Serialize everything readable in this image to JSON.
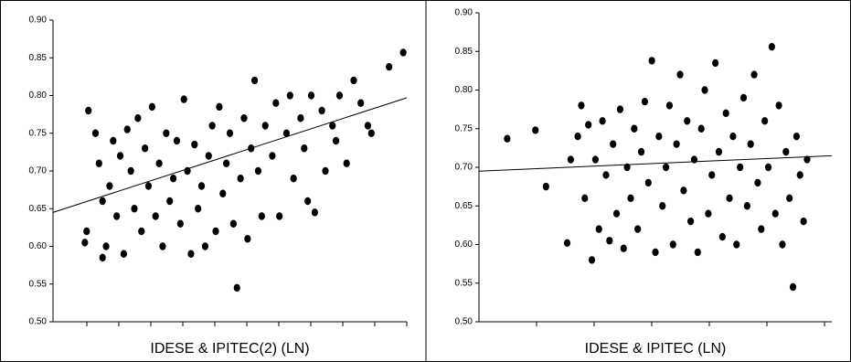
{
  "chart_data": [
    {
      "type": "scatter",
      "x_label": "IDESE & IPITEC(2) (LN)",
      "color": "#000000",
      "xlim": [
        0,
        10
      ],
      "ylim": [
        0.5,
        0.9
      ],
      "yticks": [
        {
          "value": 0.5,
          "label": "0.50"
        },
        0.55,
        {
          "value": 0.6,
          "label": "0.60"
        },
        0.65,
        {
          "value": 0.7,
          "label": "0.70"
        },
        0.75,
        {
          "value": 0.8,
          "label": "0.80"
        },
        0.85,
        {
          "value": 0.9,
          "label": "0.90"
        }
      ],
      "x": [
        0.9,
        0.95,
        1.0,
        1.2,
        1.3,
        1.4,
        1.4,
        1.5,
        1.6,
        1.7,
        1.8,
        1.9,
        2.0,
        2.1,
        2.2,
        2.3,
        2.4,
        2.5,
        2.6,
        2.7,
        2.8,
        2.9,
        3.0,
        3.1,
        3.2,
        3.3,
        3.4,
        3.5,
        3.6,
        3.7,
        3.8,
        3.9,
        4.0,
        4.1,
        4.2,
        4.3,
        4.4,
        4.5,
        4.6,
        4.7,
        4.8,
        4.9,
        5.0,
        5.1,
        5.2,
        5.3,
        5.4,
        5.5,
        5.6,
        5.7,
        5.8,
        5.9,
        6.0,
        6.2,
        6.3,
        6.4,
        6.6,
        6.7,
        6.8,
        7.0,
        7.1,
        7.2,
        7.3,
        7.4,
        7.6,
        7.7,
        7.9,
        8.0,
        8.1,
        8.3,
        8.5,
        8.7,
        8.9,
        9.0,
        9.5,
        9.9
      ],
      "y": [
        0.605,
        0.62,
        0.78,
        0.75,
        0.71,
        0.66,
        0.585,
        0.6,
        0.68,
        0.74,
        0.64,
        0.72,
        0.59,
        0.755,
        0.7,
        0.65,
        0.77,
        0.62,
        0.73,
        0.68,
        0.785,
        0.64,
        0.71,
        0.6,
        0.75,
        0.66,
        0.69,
        0.74,
        0.63,
        0.795,
        0.7,
        0.59,
        0.735,
        0.65,
        0.68,
        0.6,
        0.72,
        0.76,
        0.62,
        0.785,
        0.67,
        0.71,
        0.75,
        0.63,
        0.545,
        0.69,
        0.77,
        0.61,
        0.73,
        0.82,
        0.7,
        0.64,
        0.76,
        0.72,
        0.79,
        0.64,
        0.75,
        0.8,
        0.69,
        0.77,
        0.73,
        0.66,
        0.8,
        0.645,
        0.78,
        0.7,
        0.76,
        0.74,
        0.8,
        0.71,
        0.82,
        0.79,
        0.76,
        0.75,
        0.838,
        0.857
      ],
      "trendline": {
        "x": [
          0,
          10
        ],
        "y": [
          0.645,
          0.797
        ]
      }
    },
    {
      "type": "scatter",
      "x_label": "IDESE & IPITEC (LN)",
      "color": "#000000",
      "xlim": [
        0,
        10
      ],
      "ylim": [
        0.5,
        0.9
      ],
      "yticks": [
        {
          "value": 0.5,
          "label": "0.50"
        },
        0.55,
        {
          "value": 0.6,
          "label": "0.60"
        },
        0.65,
        {
          "value": 0.7,
          "label": "0.70"
        },
        0.75,
        {
          "value": 0.8,
          "label": "0.80"
        },
        0.85,
        {
          "value": 0.9,
          "label": "0.90"
        }
      ],
      "x": [
        0.8,
        1.6,
        1.9,
        2.5,
        2.6,
        2.8,
        2.9,
        3.0,
        3.1,
        3.2,
        3.3,
        3.4,
        3.5,
        3.6,
        3.7,
        3.8,
        3.9,
        4.0,
        4.1,
        4.2,
        4.3,
        4.4,
        4.5,
        4.6,
        4.7,
        4.8,
        4.9,
        5.0,
        5.1,
        5.2,
        5.3,
        5.4,
        5.5,
        5.6,
        5.7,
        5.8,
        5.9,
        6.0,
        6.1,
        6.2,
        6.3,
        6.4,
        6.5,
        6.6,
        6.7,
        6.8,
        6.9,
        7.0,
        7.1,
        7.2,
        7.3,
        7.4,
        7.5,
        7.6,
        7.7,
        7.8,
        7.9,
        8.0,
        8.1,
        8.2,
        8.3,
        8.4,
        8.5,
        8.6,
        8.7,
        8.8,
        8.9,
        9.0,
        9.1,
        9.2,
        9.3
      ],
      "y": [
        0.737,
        0.748,
        0.675,
        0.602,
        0.71,
        0.74,
        0.78,
        0.66,
        0.755,
        0.58,
        0.71,
        0.62,
        0.76,
        0.69,
        0.605,
        0.73,
        0.64,
        0.775,
        0.595,
        0.7,
        0.66,
        0.75,
        0.62,
        0.72,
        0.785,
        0.68,
        0.838,
        0.59,
        0.74,
        0.65,
        0.7,
        0.78,
        0.6,
        0.73,
        0.82,
        0.67,
        0.76,
        0.63,
        0.71,
        0.59,
        0.75,
        0.8,
        0.64,
        0.69,
        0.835,
        0.72,
        0.61,
        0.77,
        0.66,
        0.74,
        0.6,
        0.7,
        0.79,
        0.65,
        0.73,
        0.82,
        0.68,
        0.62,
        0.76,
        0.7,
        0.856,
        0.64,
        0.78,
        0.6,
        0.72,
        0.66,
        0.545,
        0.74,
        0.69,
        0.63,
        0.71
      ],
      "trendline": {
        "x": [
          0,
          10
        ],
        "y": [
          0.695,
          0.715
        ]
      }
    }
  ]
}
